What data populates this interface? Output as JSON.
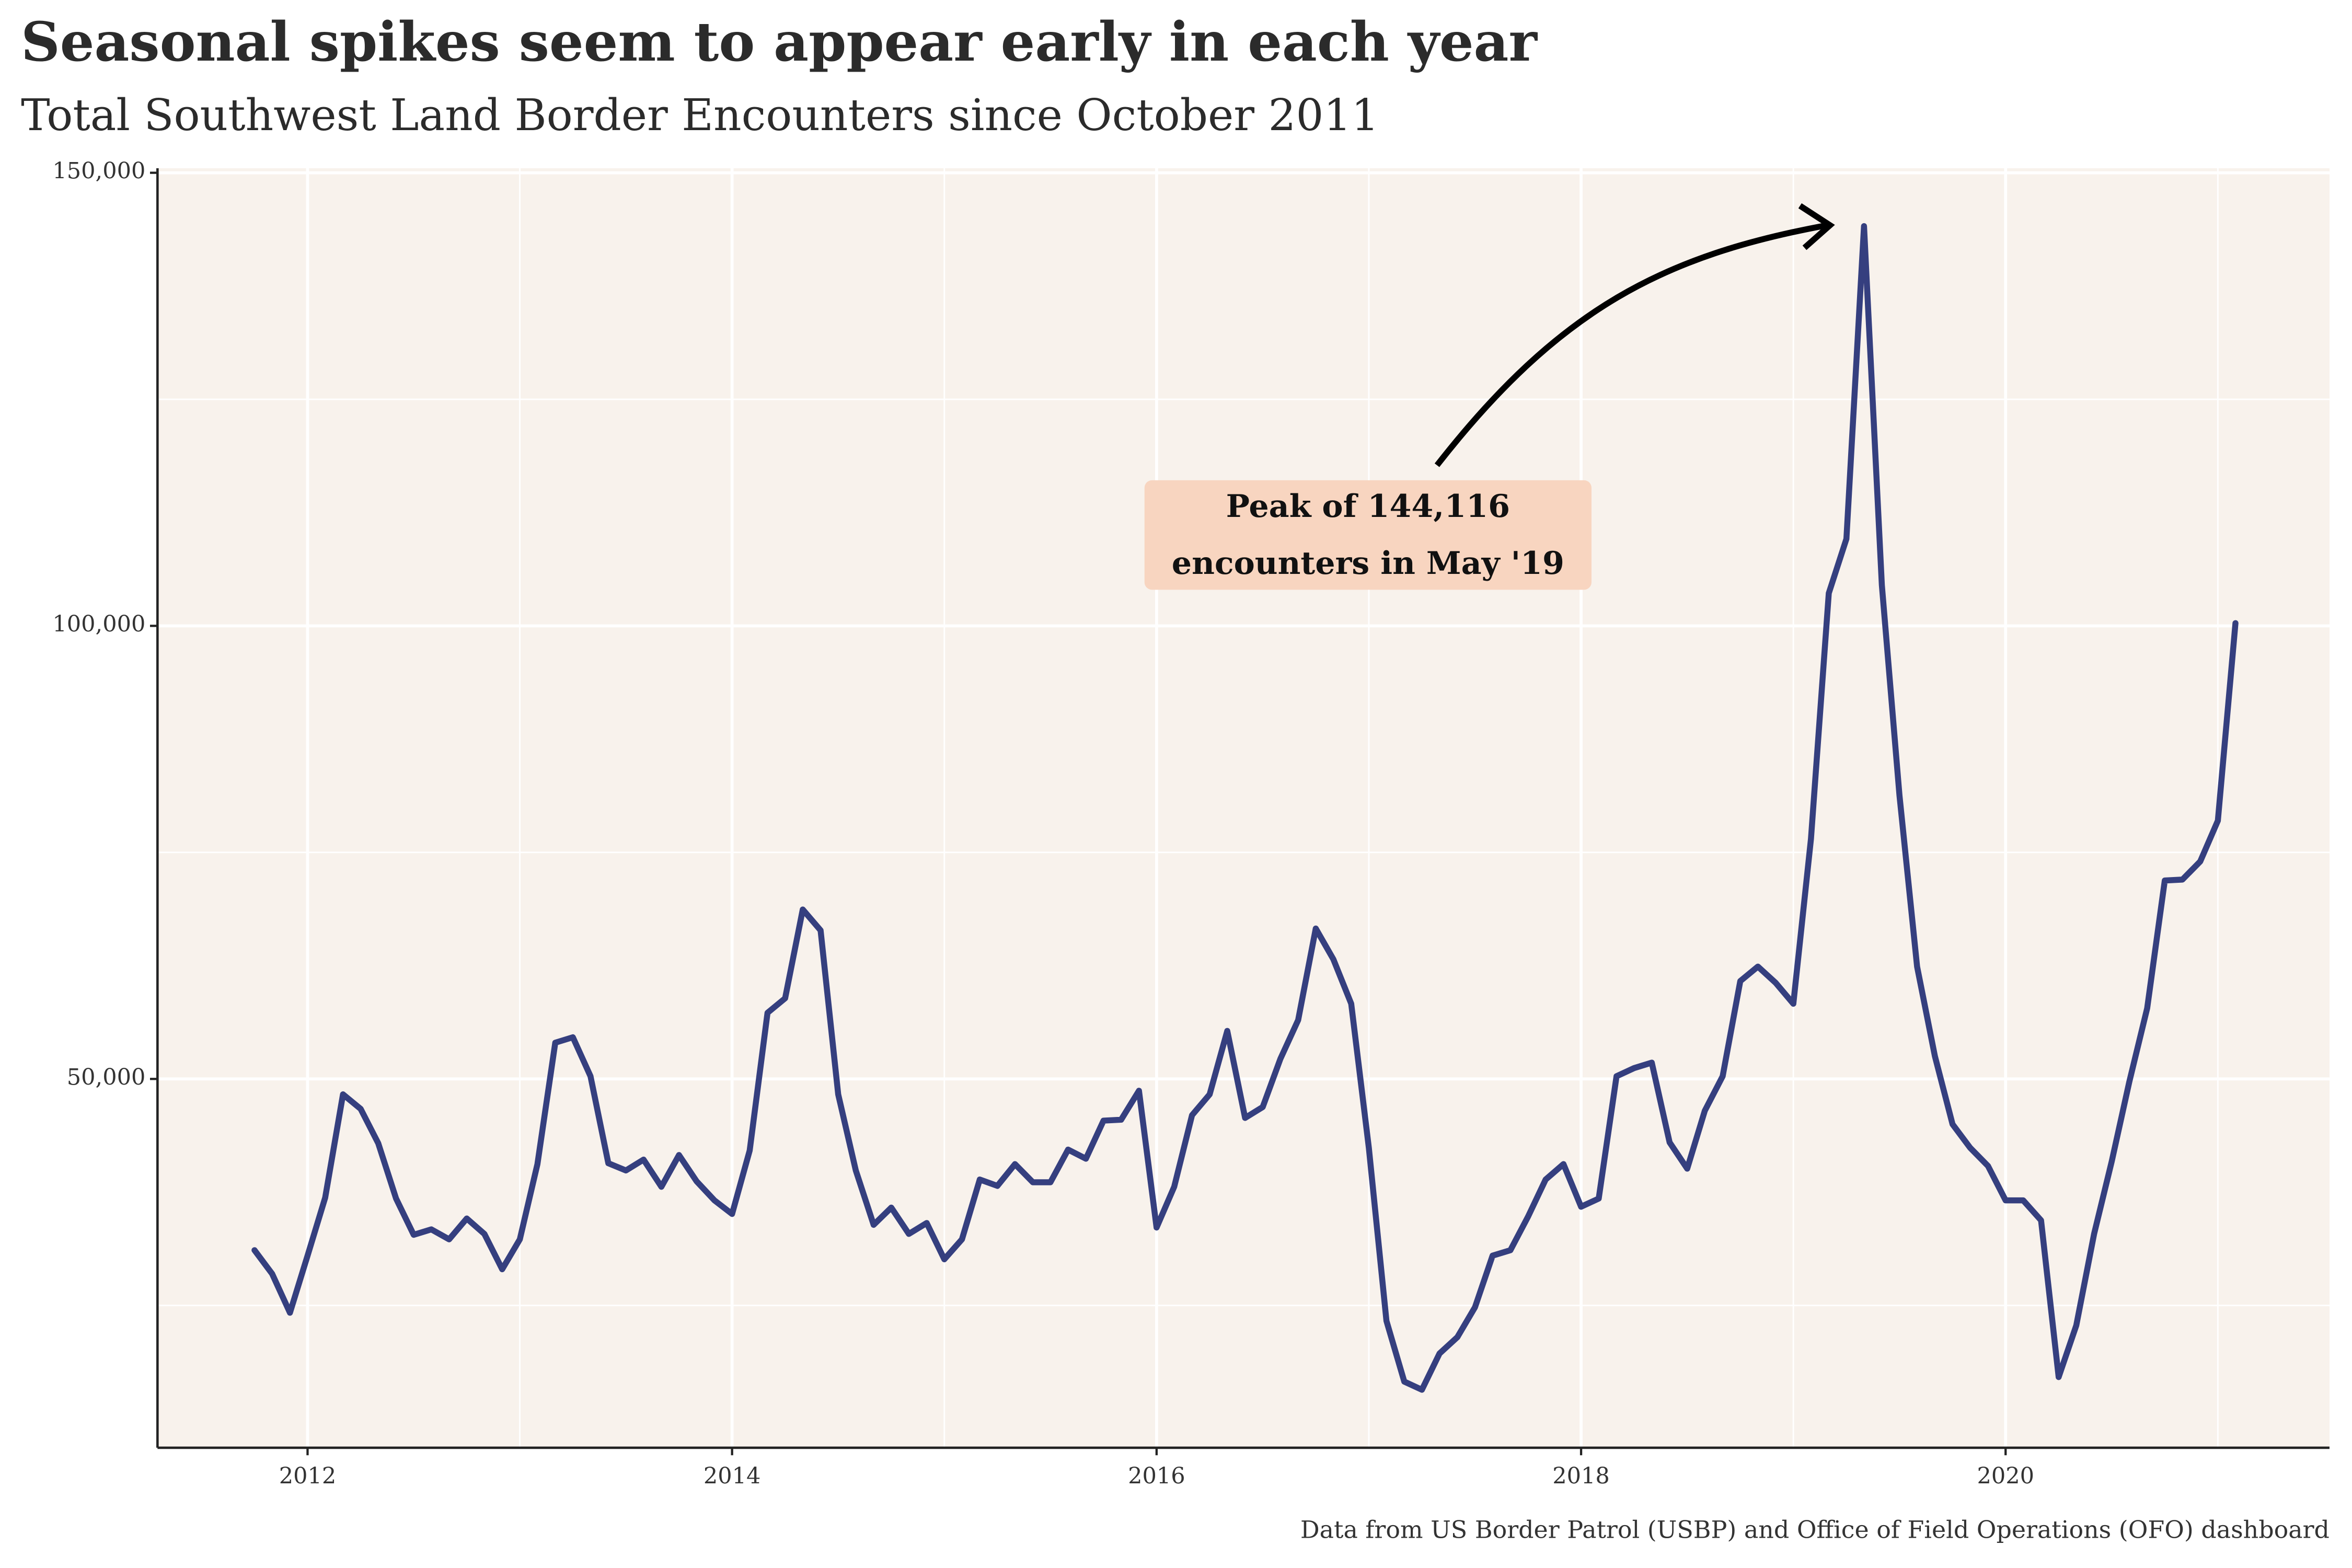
{
  "chart_data": {
    "type": "line",
    "title": "Seasonal spikes seem to appear early in each year",
    "subtitle": "Total Southwest Land Border Encounters since October 2011",
    "caption": "Data from US Border Patrol (USBP) and Office of Field Operations (OFO) dashboard",
    "annotation": [
      "Peak of 144,116",
      "encounters in May '19"
    ],
    "color": "#353f7f",
    "grid": true,
    "x": [
      2011.75,
      2011.833,
      2011.917,
      2012.0,
      2012.083,
      2012.167,
      2012.25,
      2012.333,
      2012.417,
      2012.5,
      2012.583,
      2012.667,
      2012.75,
      2012.833,
      2012.917,
      2013.0,
      2013.083,
      2013.167,
      2013.25,
      2013.333,
      2013.417,
      2013.5,
      2013.583,
      2013.667,
      2013.75,
      2013.833,
      2013.917,
      2014.0,
      2014.083,
      2014.167,
      2014.25,
      2014.333,
      2014.417,
      2014.5,
      2014.583,
      2014.667,
      2014.75,
      2014.833,
      2014.917,
      2015.0,
      2015.083,
      2015.167,
      2015.25,
      2015.333,
      2015.417,
      2015.5,
      2015.583,
      2015.667,
      2015.75,
      2015.833,
      2015.917,
      2016.0,
      2016.083,
      2016.167,
      2016.25,
      2016.333,
      2016.417,
      2016.5,
      2016.583,
      2016.667,
      2016.75,
      2016.833,
      2016.917,
      2017.0,
      2017.083,
      2017.167,
      2017.25,
      2017.333,
      2017.417,
      2017.5,
      2017.583,
      2017.667,
      2017.75,
      2017.833,
      2017.917,
      2018.0,
      2018.083,
      2018.167,
      2018.25,
      2018.333,
      2018.417,
      2018.5,
      2018.583,
      2018.667,
      2018.75,
      2018.833,
      2018.917,
      2019.0,
      2019.083,
      2019.167,
      2019.25,
      2019.333,
      2019.417,
      2019.5,
      2019.583,
      2019.667,
      2019.75,
      2019.833,
      2019.917,
      2020.0,
      2020.083,
      2020.167,
      2020.25,
      2020.333,
      2020.417,
      2020.5,
      2020.583,
      2020.667,
      2020.75,
      2020.833,
      2020.917,
      2021.0,
      2021.083
    ],
    "values": [
      31100,
      28500,
      24200,
      30500,
      36900,
      48300,
      46700,
      42900,
      36800,
      32800,
      33400,
      32300,
      34600,
      32900,
      29000,
      32300,
      40600,
      54000,
      54600,
      50300,
      40700,
      39900,
      41100,
      38100,
      41600,
      38700,
      36600,
      35100,
      42100,
      57300,
      58900,
      68700,
      66400,
      48300,
      39900,
      33900,
      35800,
      32900,
      34100,
      30100,
      32300,
      38900,
      38200,
      40600,
      38600,
      38600,
      42200,
      41200,
      45400,
      45500,
      48700,
      33600,
      38100,
      46000,
      48300,
      55300,
      45700,
      46900,
      52200,
      56500,
      66600,
      63200,
      58300,
      42400,
      23300,
      16600,
      15700,
      19700,
      21500,
      24800,
      30500,
      31100,
      34800,
      38900,
      40600,
      35900,
      36800,
      50300,
      51200,
      51800,
      43000,
      40100,
      46500,
      50300,
      60800,
      62400,
      60600,
      58300,
      76500,
      103600,
      109600,
      144116,
      104500,
      81300,
      62400,
      52500,
      45000,
      42400,
      40400,
      36600,
      36600,
      34400,
      17100,
      22800,
      32900,
      40900,
      49700,
      57800,
      71900,
      72000,
      74000,
      78500,
      100300
    ],
    "xlim": [
      2011.293,
      2021.526
    ],
    "xticks": [
      2012,
      2014,
      2016,
      2018,
      2020
    ],
    "ylim": [
      9300,
      150500
    ],
    "yticks": [
      {
        "value": 50000,
        "label": "50,000"
      },
      {
        "value": 100000,
        "label": "100,000"
      },
      {
        "value": 150000,
        "label": "150,000"
      }
    ]
  }
}
